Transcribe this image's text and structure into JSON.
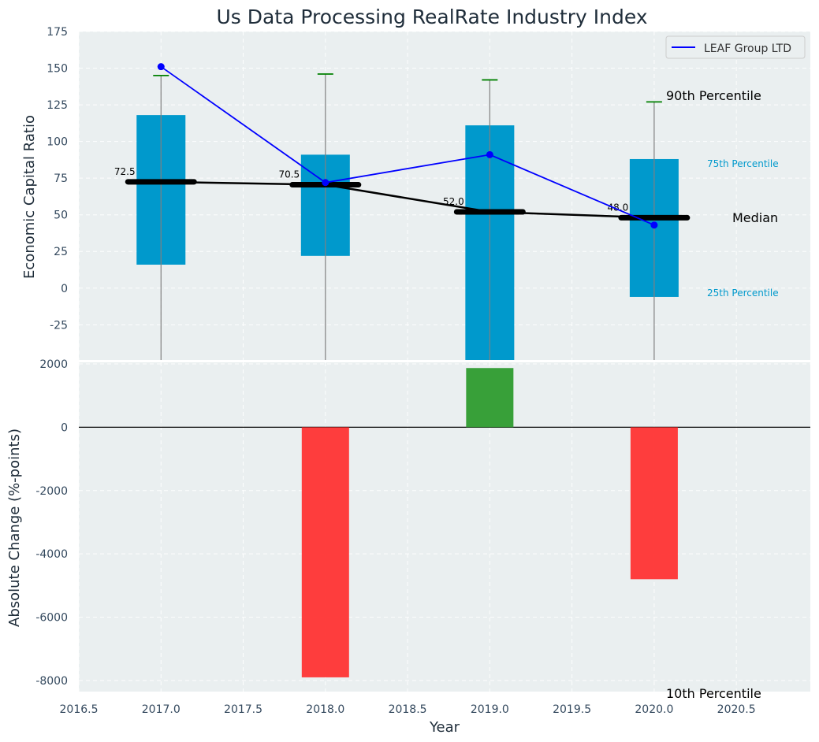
{
  "chart_data": [
    {
      "type": "box-percentile",
      "title": "Us Data Processing RealRate Industry Index",
      "ylabel": "Economic Capital Ratio",
      "ylim": [
        -49,
        175
      ],
      "yticks": [
        -25,
        0,
        25,
        50,
        75,
        100,
        125,
        150,
        175
      ],
      "grid": true,
      "categories": [
        2017,
        2018,
        2019,
        2020
      ],
      "percentile_labels": {
        "p90": "90th Percentile",
        "p75": "75th Percentile",
        "median": "Median",
        "p25": "25th Percentile",
        "p10": "10th Percentile"
      },
      "percentiles": [
        {
          "year": 2017,
          "p10": -49,
          "p25": 16,
          "median": 72.5,
          "p75": 118,
          "p90": 145
        },
        {
          "year": 2018,
          "p10": -49,
          "p25": 22,
          "median": 70.5,
          "p75": 91,
          "p90": 146
        },
        {
          "year": 2019,
          "p10": -49,
          "p25": -49,
          "median": 52.0,
          "p75": 111,
          "p90": 142
        },
        {
          "year": 2020,
          "p10": -49,
          "p25": -6,
          "median": 48.0,
          "p75": 88,
          "p90": 127
        }
      ],
      "median_labels": [
        "72.5",
        "70.5",
        "52.0",
        "48.0"
      ],
      "series": [
        {
          "name": "LEAF Group LTD",
          "x": [
            2017,
            2018,
            2019,
            2020
          ],
          "values": [
            151,
            72,
            91,
            43
          ]
        }
      ],
      "legend": {
        "position": "top-right",
        "entries": [
          "LEAF Group LTD"
        ]
      }
    },
    {
      "type": "bar",
      "xlabel": "Year",
      "ylabel": "Absolute Change (%-points)",
      "ylim": [
        -8350,
        2050
      ],
      "yticks": [
        -8000,
        -6000,
        -4000,
        -2000,
        0,
        2000
      ],
      "xlim": [
        2016.5,
        2020.95
      ],
      "xticks": [
        "2016.5",
        "2017.0",
        "2017.5",
        "2018.0",
        "2018.5",
        "2019.0",
        "2019.5",
        "2020.0",
        "2020.5"
      ],
      "grid": true,
      "x": [
        2018,
        2019,
        2020
      ],
      "values": [
        -7900,
        1870,
        -4800
      ]
    }
  ],
  "colors": {
    "background": "#eaeff0",
    "box": "#0099cc",
    "median": "#000000",
    "series": "#0000ff",
    "whisker_cap": "#008000",
    "whisker": "#808080",
    "positive": "#2e9b2e",
    "negative": "#ff3333",
    "p_label_cyan": "#0099cc"
  }
}
